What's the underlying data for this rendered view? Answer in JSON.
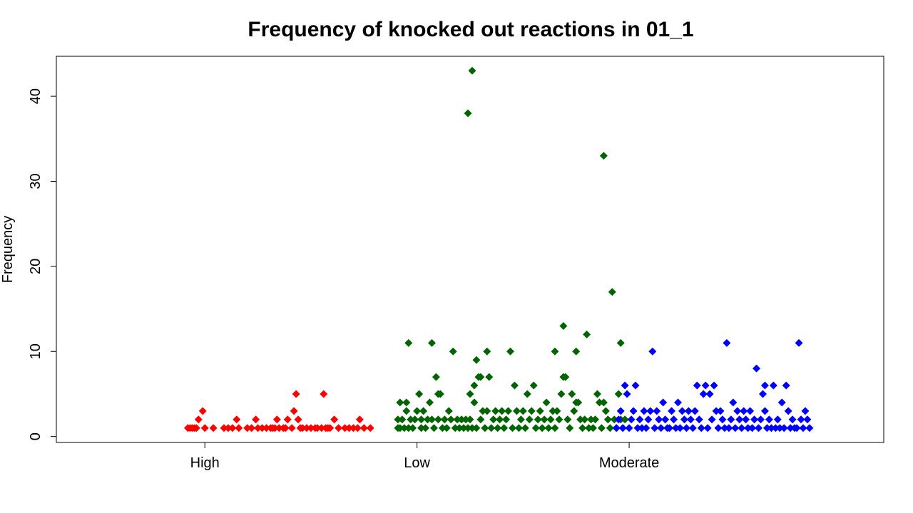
{
  "chart_data": {
    "type": "scatter",
    "title": "Frequency of knocked out reactions in 01_1",
    "xlabel": "",
    "ylabel": "Frequency",
    "categories": [
      "High",
      "Low",
      "Moderate"
    ],
    "ylim": [
      -0.7,
      44.7
    ],
    "y_ticks": [
      0,
      10,
      20,
      30,
      40
    ],
    "x_range": [
      0.3,
      4.2
    ],
    "grid": false,
    "legend": "none",
    "marker": "diamond",
    "series": [
      {
        "category": "High",
        "color": "#ff0000",
        "points": [
          [
            0.92,
            1
          ],
          [
            0.93,
            1
          ],
          [
            0.94,
            1
          ],
          [
            0.95,
            1
          ],
          [
            0.96,
            1
          ],
          [
            0.97,
            2
          ],
          [
            0.99,
            3
          ],
          [
            1.0,
            1
          ],
          [
            1.04,
            1
          ],
          [
            1.09,
            1
          ],
          [
            1.11,
            1
          ],
          [
            1.13,
            1
          ],
          [
            1.15,
            2
          ],
          [
            1.16,
            1
          ],
          [
            1.2,
            1
          ],
          [
            1.22,
            1
          ],
          [
            1.24,
            2
          ],
          [
            1.25,
            1
          ],
          [
            1.27,
            1
          ],
          [
            1.29,
            1
          ],
          [
            1.31,
            1
          ],
          [
            1.32,
            1
          ],
          [
            1.33,
            1
          ],
          [
            1.34,
            2
          ],
          [
            1.35,
            1
          ],
          [
            1.37,
            1
          ],
          [
            1.38,
            1
          ],
          [
            1.39,
            2
          ],
          [
            1.41,
            1
          ],
          [
            1.42,
            3
          ],
          [
            1.43,
            5
          ],
          [
            1.44,
            2
          ],
          [
            1.45,
            1
          ],
          [
            1.46,
            1
          ],
          [
            1.48,
            1
          ],
          [
            1.5,
            1
          ],
          [
            1.52,
            1
          ],
          [
            1.53,
            1
          ],
          [
            1.55,
            1
          ],
          [
            1.56,
            5
          ],
          [
            1.57,
            1
          ],
          [
            1.58,
            1
          ],
          [
            1.59,
            1
          ],
          [
            1.61,
            2
          ],
          [
            1.63,
            1
          ],
          [
            1.66,
            1
          ],
          [
            1.68,
            1
          ],
          [
            1.7,
            1
          ],
          [
            1.72,
            1
          ],
          [
            1.73,
            2
          ],
          [
            1.75,
            1
          ],
          [
            1.78,
            1
          ]
        ]
      },
      {
        "category": "Low",
        "color": "#006400",
        "points": [
          [
            1.91,
            1
          ],
          [
            1.91,
            2
          ],
          [
            1.92,
            4
          ],
          [
            1.92,
            1
          ],
          [
            1.93,
            2
          ],
          [
            1.94,
            1
          ],
          [
            1.95,
            4
          ],
          [
            1.95,
            3
          ],
          [
            1.96,
            11
          ],
          [
            1.96,
            1
          ],
          [
            1.97,
            2
          ],
          [
            1.98,
            1
          ],
          [
            1.99,
            2
          ],
          [
            2.0,
            3
          ],
          [
            2.01,
            5
          ],
          [
            2.02,
            1
          ],
          [
            2.02,
            2
          ],
          [
            2.03,
            3
          ],
          [
            2.04,
            1
          ],
          [
            2.05,
            2
          ],
          [
            2.06,
            4
          ],
          [
            2.07,
            2
          ],
          [
            2.07,
            11
          ],
          [
            2.08,
            1
          ],
          [
            2.09,
            7
          ],
          [
            2.1,
            5
          ],
          [
            2.1,
            2
          ],
          [
            2.11,
            5
          ],
          [
            2.12,
            1
          ],
          [
            2.13,
            2
          ],
          [
            2.14,
            1
          ],
          [
            2.15,
            3
          ],
          [
            2.16,
            2
          ],
          [
            2.17,
            10
          ],
          [
            2.18,
            1
          ],
          [
            2.19,
            2
          ],
          [
            2.2,
            1
          ],
          [
            2.21,
            2
          ],
          [
            2.22,
            1
          ],
          [
            2.23,
            2
          ],
          [
            2.24,
            1
          ],
          [
            2.24,
            38
          ],
          [
            2.25,
            5
          ],
          [
            2.25,
            2
          ],
          [
            2.26,
            1
          ],
          [
            2.26,
            43
          ],
          [
            2.27,
            6
          ],
          [
            2.27,
            4
          ],
          [
            2.28,
            9
          ],
          [
            2.28,
            1
          ],
          [
            2.29,
            7
          ],
          [
            2.3,
            2
          ],
          [
            2.3,
            7
          ],
          [
            2.31,
            3
          ],
          [
            2.32,
            1
          ],
          [
            2.33,
            10
          ],
          [
            2.33,
            3
          ],
          [
            2.34,
            7
          ],
          [
            2.35,
            1
          ],
          [
            2.36,
            2
          ],
          [
            2.37,
            3
          ],
          [
            2.38,
            1
          ],
          [
            2.39,
            2
          ],
          [
            2.4,
            3
          ],
          [
            2.41,
            1
          ],
          [
            2.42,
            2
          ],
          [
            2.43,
            3
          ],
          [
            2.44,
            10
          ],
          [
            2.45,
            1
          ],
          [
            2.46,
            6
          ],
          [
            2.47,
            3
          ],
          [
            2.48,
            1
          ],
          [
            2.49,
            2
          ],
          [
            2.5,
            3
          ],
          [
            2.51,
            1
          ],
          [
            2.52,
            5
          ],
          [
            2.53,
            2
          ],
          [
            2.54,
            3
          ],
          [
            2.55,
            6
          ],
          [
            2.56,
            1
          ],
          [
            2.57,
            2
          ],
          [
            2.58,
            3
          ],
          [
            2.59,
            1
          ],
          [
            2.6,
            2
          ],
          [
            2.61,
            4
          ],
          [
            2.62,
            1
          ],
          [
            2.63,
            2
          ],
          [
            2.64,
            3
          ],
          [
            2.65,
            1
          ],
          [
            2.65,
            10
          ],
          [
            2.66,
            3
          ],
          [
            2.67,
            2
          ],
          [
            2.68,
            5
          ],
          [
            2.69,
            13
          ],
          [
            2.69,
            7
          ],
          [
            2.7,
            7
          ],
          [
            2.71,
            2
          ],
          [
            2.72,
            1
          ],
          [
            2.73,
            5
          ],
          [
            2.74,
            3
          ],
          [
            2.75,
            10
          ],
          [
            2.75,
            4
          ],
          [
            2.76,
            4
          ],
          [
            2.77,
            2
          ],
          [
            2.78,
            1
          ],
          [
            2.79,
            2
          ],
          [
            2.8,
            12
          ],
          [
            2.81,
            1
          ],
          [
            2.82,
            2
          ],
          [
            2.83,
            1
          ],
          [
            2.84,
            2
          ],
          [
            2.85,
            5
          ],
          [
            2.86,
            4
          ],
          [
            2.87,
            1
          ],
          [
            2.88,
            4
          ],
          [
            2.88,
            33
          ],
          [
            2.89,
            3
          ],
          [
            2.9,
            2
          ],
          [
            2.91,
            1
          ],
          [
            2.92,
            17
          ],
          [
            2.93,
            2
          ],
          [
            2.94,
            1
          ],
          [
            2.95,
            5
          ],
          [
            2.96,
            11
          ],
          [
            2.96,
            2
          ],
          [
            2.97,
            1
          ],
          [
            2.98,
            2
          ]
        ]
      },
      {
        "category": "Moderate",
        "color": "#0000ff",
        "points": [
          [
            2.94,
            1
          ],
          [
            2.95,
            2
          ],
          [
            2.96,
            3
          ],
          [
            2.97,
            1
          ],
          [
            2.98,
            6
          ],
          [
            2.99,
            5
          ],
          [
            3.0,
            1
          ],
          [
            3.01,
            2
          ],
          [
            3.02,
            3
          ],
          [
            3.03,
            6
          ],
          [
            3.04,
            1
          ],
          [
            3.05,
            2
          ],
          [
            3.06,
            1
          ],
          [
            3.07,
            3
          ],
          [
            3.08,
            1
          ],
          [
            3.09,
            2
          ],
          [
            3.1,
            3
          ],
          [
            3.11,
            10
          ],
          [
            3.12,
            1
          ],
          [
            3.13,
            3
          ],
          [
            3.14,
            2
          ],
          [
            3.15,
            1
          ],
          [
            3.16,
            4
          ],
          [
            3.17,
            2
          ],
          [
            3.18,
            1
          ],
          [
            3.19,
            1
          ],
          [
            3.2,
            3
          ],
          [
            3.21,
            2
          ],
          [
            3.22,
            1
          ],
          [
            3.23,
            4
          ],
          [
            3.24,
            1
          ],
          [
            3.25,
            3
          ],
          [
            3.26,
            2
          ],
          [
            3.27,
            1
          ],
          [
            3.28,
            3
          ],
          [
            3.29,
            2
          ],
          [
            3.3,
            1
          ],
          [
            3.31,
            3
          ],
          [
            3.32,
            6
          ],
          [
            3.33,
            2
          ],
          [
            3.34,
            1
          ],
          [
            3.35,
            5
          ],
          [
            3.36,
            6
          ],
          [
            3.37,
            1
          ],
          [
            3.38,
            5
          ],
          [
            3.39,
            2
          ],
          [
            3.4,
            6
          ],
          [
            3.41,
            3
          ],
          [
            3.42,
            1
          ],
          [
            3.43,
            3
          ],
          [
            3.44,
            2
          ],
          [
            3.45,
            1
          ],
          [
            3.46,
            11
          ],
          [
            3.47,
            1
          ],
          [
            3.48,
            2
          ],
          [
            3.49,
            4
          ],
          [
            3.5,
            1
          ],
          [
            3.51,
            3
          ],
          [
            3.52,
            2
          ],
          [
            3.53,
            1
          ],
          [
            3.54,
            3
          ],
          [
            3.55,
            2
          ],
          [
            3.56,
            1
          ],
          [
            3.57,
            3
          ],
          [
            3.58,
            1
          ],
          [
            3.59,
            2
          ],
          [
            3.6,
            8
          ],
          [
            3.61,
            1
          ],
          [
            3.62,
            2
          ],
          [
            3.63,
            5
          ],
          [
            3.64,
            3
          ],
          [
            3.64,
            6
          ],
          [
            3.65,
            1
          ],
          [
            3.66,
            2
          ],
          [
            3.67,
            1
          ],
          [
            3.68,
            6
          ],
          [
            3.69,
            1
          ],
          [
            3.7,
            2
          ],
          [
            3.71,
            1
          ],
          [
            3.72,
            4
          ],
          [
            3.73,
            1
          ],
          [
            3.74,
            6
          ],
          [
            3.75,
            3
          ],
          [
            3.76,
            1
          ],
          [
            3.77,
            2
          ],
          [
            3.78,
            1
          ],
          [
            3.79,
            1
          ],
          [
            3.8,
            11
          ],
          [
            3.81,
            2
          ],
          [
            3.82,
            1
          ],
          [
            3.83,
            3
          ],
          [
            3.84,
            2
          ],
          [
            3.85,
            1
          ]
        ]
      }
    ]
  }
}
